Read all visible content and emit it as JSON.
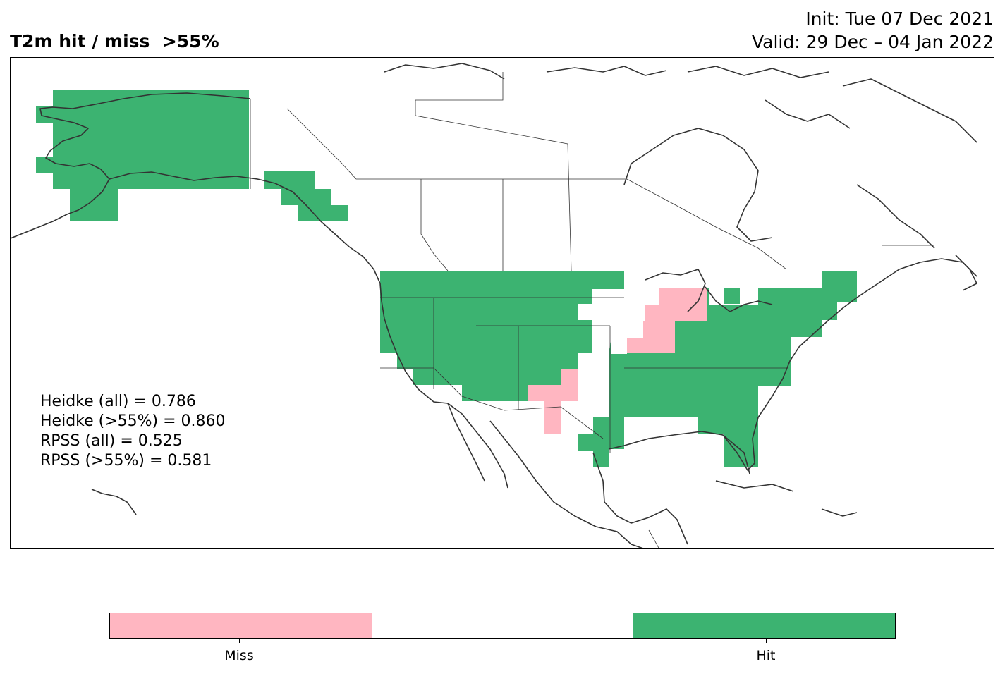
{
  "title": {
    "left": "T2m hit / miss  >55%",
    "init": "Init: Tue 07 Dec 2021",
    "valid": "Valid: 29 Dec – 04 Jan 2022"
  },
  "stats": {
    "heidke_all": "Heidke (all) = 0.786",
    "heidke_55": "Heidke (>55%) = 0.860",
    "rpss_all": "RPSS (all) = 0.525",
    "rpss_55": "RPSS (>55%) = 0.581"
  },
  "colors": {
    "hit": "#3cb371",
    "miss": "#ffb6c1",
    "neutral": "#ffffff",
    "coast": "#333333"
  },
  "colorbar": {
    "miss_label": "Miss",
    "hit_label": "Hit"
  }
}
